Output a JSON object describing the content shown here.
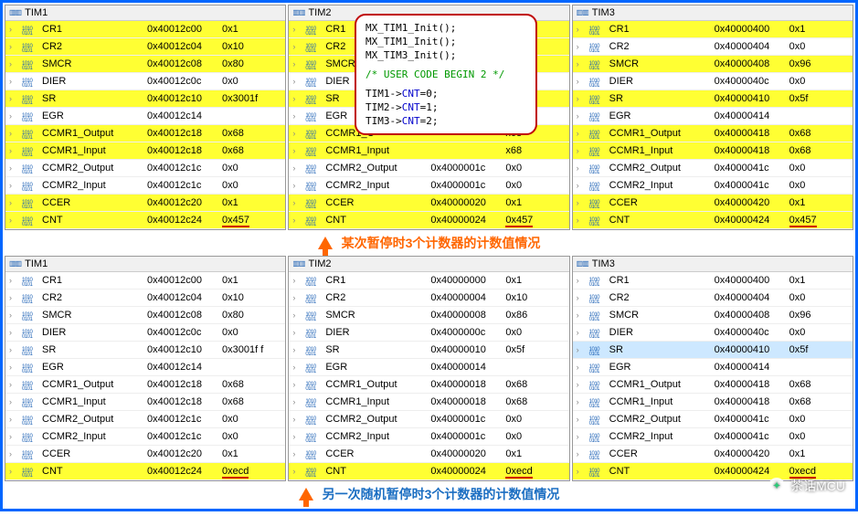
{
  "colors": {
    "frame_border": "#0066ff",
    "highlight_bg": "#ffff33",
    "selected_bg": "#cde8ff",
    "caption_orange": "#ff6600",
    "caption_blue": "#1b6ec2",
    "overlay_border": "#c00000",
    "code_keyword": "#0000cc",
    "code_comment": "#009900",
    "underline_red": "#d00000"
  },
  "code_overlay": {
    "lines1": [
      "MX_TIM1_Init();",
      "MX_TIM1_Init();",
      "MX_TIM3_Init();"
    ],
    "comment": "/* USER CODE BEGIN 2 */",
    "lines2_prefix": [
      "TIM1->",
      "TIM2->",
      "TIM3->"
    ],
    "lines2_member": "CNT",
    "lines2_suffix": [
      "=0;",
      "=1;",
      "=2;"
    ]
  },
  "caption1": "某次暂停时3个计数器的计数值情况",
  "caption2": "另一次随机暂停时3个计数器的计数值情况",
  "watermark": "茶话MCU",
  "top_panels": [
    {
      "title": "TIM1",
      "rows": [
        {
          "name": "CR1",
          "addr": "0x40012c00",
          "val": "0x1",
          "hl": true
        },
        {
          "name": "CR2",
          "addr": "0x40012c04",
          "val": "0x10",
          "hl": true
        },
        {
          "name": "SMCR",
          "addr": "0x40012c08",
          "val": "0x80",
          "hl": true
        },
        {
          "name": "DIER",
          "addr": "0x40012c0c",
          "val": "0x0",
          "hl": false
        },
        {
          "name": "SR",
          "addr": "0x40012c10",
          "val": "0x3001f",
          "hl": true
        },
        {
          "name": "EGR",
          "addr": "0x40012c14",
          "val": "",
          "hl": false
        },
        {
          "name": "CCMR1_Output",
          "addr": "0x40012c18",
          "val": "0x68",
          "hl": true
        },
        {
          "name": "CCMR1_Input",
          "addr": "0x40012c18",
          "val": "0x68",
          "hl": true
        },
        {
          "name": "CCMR2_Output",
          "addr": "0x40012c1c",
          "val": "0x0",
          "hl": false
        },
        {
          "name": "CCMR2_Input",
          "addr": "0x40012c1c",
          "val": "0x0",
          "hl": false
        },
        {
          "name": "CCER",
          "addr": "0x40012c20",
          "val": "0x1",
          "hl": true
        },
        {
          "name": "CNT",
          "addr": "0x40012c24",
          "val": "0x457",
          "hl": true,
          "ul": true
        }
      ]
    },
    {
      "title": "TIM2",
      "rows": [
        {
          "name": "CR1",
          "addr": "",
          "val": "x1",
          "hl": true
        },
        {
          "name": "CR2",
          "addr": "",
          "val": "x10",
          "hl": true
        },
        {
          "name": "SMCR",
          "addr": "",
          "val": "x86",
          "hl": true
        },
        {
          "name": "DIER",
          "addr": "",
          "val": "",
          "hl": false
        },
        {
          "name": "SR",
          "addr": "",
          "val": "x5f",
          "hl": true
        },
        {
          "name": "EGR",
          "addr": "",
          "val": "",
          "hl": false
        },
        {
          "name": "CCMR1_O",
          "addr": "",
          "val": "x68",
          "hl": true
        },
        {
          "name": "CCMR1_Input",
          "addr": "",
          "val": "x68",
          "hl": true
        },
        {
          "name": "CCMR2_Output",
          "addr": "0x4000001c",
          "val": "0x0",
          "hl": false
        },
        {
          "name": "CCMR2_Input",
          "addr": "0x4000001c",
          "val": "0x0",
          "hl": false
        },
        {
          "name": "CCER",
          "addr": "0x40000020",
          "val": "0x1",
          "hl": true
        },
        {
          "name": "CNT",
          "addr": "0x40000024",
          "val": "0x457",
          "hl": true,
          "ul": true
        }
      ]
    },
    {
      "title": "TIM3",
      "rows": [
        {
          "name": "CR1",
          "addr": "0x40000400",
          "val": "0x1",
          "hl": true
        },
        {
          "name": "CR2",
          "addr": "0x40000404",
          "val": "0x0",
          "hl": false
        },
        {
          "name": "SMCR",
          "addr": "0x40000408",
          "val": "0x96",
          "hl": true
        },
        {
          "name": "DIER",
          "addr": "0x4000040c",
          "val": "0x0",
          "hl": false
        },
        {
          "name": "SR",
          "addr": "0x40000410",
          "val": "0x5f",
          "hl": true
        },
        {
          "name": "EGR",
          "addr": "0x40000414",
          "val": "",
          "hl": false
        },
        {
          "name": "CCMR1_Output",
          "addr": "0x40000418",
          "val": "0x68",
          "hl": true
        },
        {
          "name": "CCMR1_Input",
          "addr": "0x40000418",
          "val": "0x68",
          "hl": true
        },
        {
          "name": "CCMR2_Output",
          "addr": "0x4000041c",
          "val": "0x0",
          "hl": false
        },
        {
          "name": "CCMR2_Input",
          "addr": "0x4000041c",
          "val": "0x0",
          "hl": false
        },
        {
          "name": "CCER",
          "addr": "0x40000420",
          "val": "0x1",
          "hl": true
        },
        {
          "name": "CNT",
          "addr": "0x40000424",
          "val": "0x457",
          "hl": true,
          "ul": true
        }
      ]
    }
  ],
  "bottom_panels": [
    {
      "title": "TIM1",
      "rows": [
        {
          "name": "CR1",
          "addr": "0x40012c00",
          "val": "0x1",
          "hl": false
        },
        {
          "name": "CR2",
          "addr": "0x40012c04",
          "val": "0x10",
          "hl": false
        },
        {
          "name": "SMCR",
          "addr": "0x40012c08",
          "val": "0x80",
          "hl": false
        },
        {
          "name": "DIER",
          "addr": "0x40012c0c",
          "val": "0x0",
          "hl": false
        },
        {
          "name": "SR",
          "addr": "0x40012c10",
          "val": "0x3001f f",
          "hl": false
        },
        {
          "name": "EGR",
          "addr": "0x40012c14",
          "val": "",
          "hl": false
        },
        {
          "name": "CCMR1_Output",
          "addr": "0x40012c18",
          "val": "0x68",
          "hl": false
        },
        {
          "name": "CCMR1_Input",
          "addr": "0x40012c18",
          "val": "0x68",
          "hl": false
        },
        {
          "name": "CCMR2_Output",
          "addr": "0x40012c1c",
          "val": "0x0",
          "hl": false
        },
        {
          "name": "CCMR2_Input",
          "addr": "0x40012c1c",
          "val": "0x0",
          "hl": false
        },
        {
          "name": "CCER",
          "addr": "0x40012c20",
          "val": "0x1",
          "hl": false
        },
        {
          "name": "CNT",
          "addr": "0x40012c24",
          "val": "0xecd",
          "hl": true,
          "ul": true
        }
      ]
    },
    {
      "title": "TIM2",
      "rows": [
        {
          "name": "CR1",
          "addr": "0x40000000",
          "val": "0x1",
          "hl": false
        },
        {
          "name": "CR2",
          "addr": "0x40000004",
          "val": "0x10",
          "hl": false
        },
        {
          "name": "SMCR",
          "addr": "0x40000008",
          "val": "0x86",
          "hl": false
        },
        {
          "name": "DIER",
          "addr": "0x4000000c",
          "val": "0x0",
          "hl": false
        },
        {
          "name": "SR",
          "addr": "0x40000010",
          "val": "0x5f",
          "hl": false
        },
        {
          "name": "EGR",
          "addr": "0x40000014",
          "val": "",
          "hl": false
        },
        {
          "name": "CCMR1_Output",
          "addr": "0x40000018",
          "val": "0x68",
          "hl": false
        },
        {
          "name": "CCMR1_Input",
          "addr": "0x40000018",
          "val": "0x68",
          "hl": false
        },
        {
          "name": "CCMR2_Output",
          "addr": "0x4000001c",
          "val": "0x0",
          "hl": false
        },
        {
          "name": "CCMR2_Input",
          "addr": "0x4000001c",
          "val": "0x0",
          "hl": false
        },
        {
          "name": "CCER",
          "addr": "0x40000020",
          "val": "0x1",
          "hl": false
        },
        {
          "name": "CNT",
          "addr": "0x40000024",
          "val": "0xecd",
          "hl": true,
          "ul": true
        }
      ]
    },
    {
      "title": "TIM3",
      "rows": [
        {
          "name": "CR1",
          "addr": "0x40000400",
          "val": "0x1",
          "hl": false
        },
        {
          "name": "CR2",
          "addr": "0x40000404",
          "val": "0x0",
          "hl": false
        },
        {
          "name": "SMCR",
          "addr": "0x40000408",
          "val": "0x96",
          "hl": false
        },
        {
          "name": "DIER",
          "addr": "0x4000040c",
          "val": "0x0",
          "hl": false
        },
        {
          "name": "SR",
          "addr": "0x40000410",
          "val": "0x5f",
          "hl": false,
          "sel": true
        },
        {
          "name": "EGR",
          "addr": "0x40000414",
          "val": "",
          "hl": false
        },
        {
          "name": "CCMR1_Output",
          "addr": "0x40000418",
          "val": "0x68",
          "hl": false
        },
        {
          "name": "CCMR1_Input",
          "addr": "0x40000418",
          "val": "0x68",
          "hl": false
        },
        {
          "name": "CCMR2_Output",
          "addr": "0x4000041c",
          "val": "0x0",
          "hl": false
        },
        {
          "name": "CCMR2_Input",
          "addr": "0x4000041c",
          "val": "0x0",
          "hl": false
        },
        {
          "name": "CCER",
          "addr": "0x40000420",
          "val": "0x1",
          "hl": false
        },
        {
          "name": "CNT",
          "addr": "0x40000424",
          "val": "0xecd",
          "hl": true,
          "ul": true
        }
      ]
    }
  ]
}
